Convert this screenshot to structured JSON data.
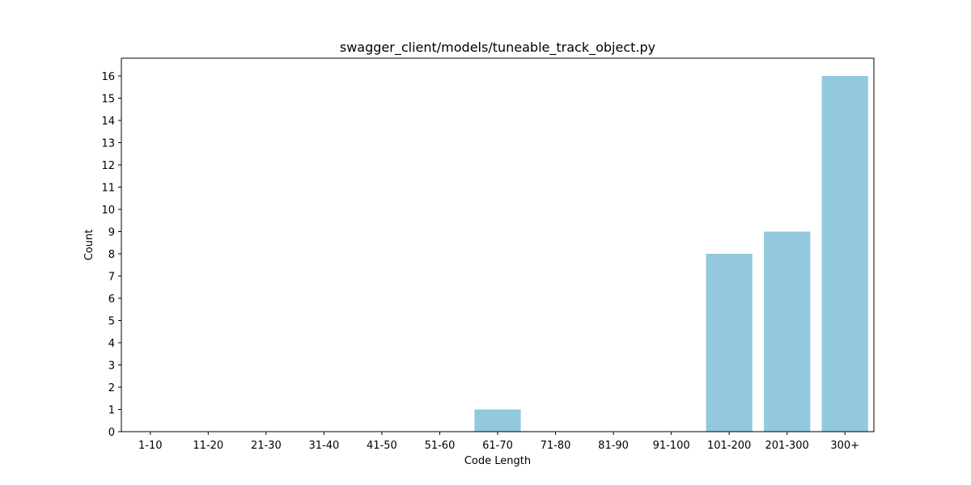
{
  "chart_data": {
    "type": "bar",
    "title": "swagger_client/models/tuneable_track_object.py",
    "xlabel": "Code Length",
    "ylabel": "Count",
    "categories": [
      "1-10",
      "11-20",
      "21-30",
      "31-40",
      "41-50",
      "51-60",
      "61-70",
      "71-80",
      "81-90",
      "91-100",
      "101-200",
      "201-300",
      "300+"
    ],
    "values": [
      0,
      0,
      0,
      0,
      0,
      0,
      1,
      0,
      0,
      0,
      8,
      9,
      16
    ],
    "ylim": [
      0,
      16.8
    ],
    "yticks": [
      0,
      1,
      2,
      3,
      4,
      5,
      6,
      7,
      8,
      9,
      10,
      11,
      12,
      13,
      14,
      15,
      16
    ],
    "grid": false,
    "bar_color": "#92c9de"
  }
}
